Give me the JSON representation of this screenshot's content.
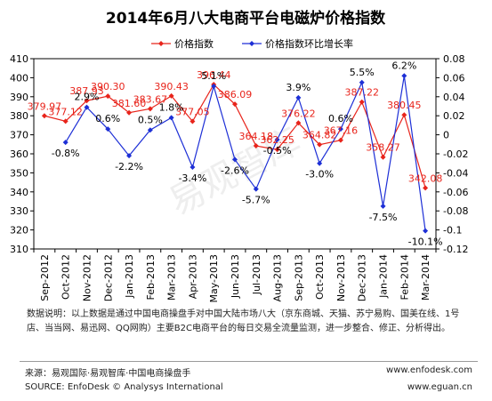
{
  "chart_data": {
    "type": "line",
    "title": "2014年6月八大电商平台电磁炉价格指数",
    "categories": [
      "Sep-2012",
      "Oct-2012",
      "Nov-2012",
      "Dec-2012",
      "Jan-2013",
      "Feb-2013",
      "Mar-2013",
      "Apr-2013",
      "May-2013",
      "Jun-2013",
      "Jul-2013",
      "Aug-2013",
      "Sep-2013",
      "Oct-2013",
      "Nov-2013",
      "Dec-2013",
      "Jan-2014",
      "Feb-2014",
      "Mar-2014"
    ],
    "series": [
      {
        "name": "价格指数",
        "axis": "left",
        "color": "#e8241b",
        "values": [
          379.97,
          377.12,
          387.93,
          390.3,
          381.6,
          383.67,
          390.43,
          377.05,
          396.44,
          386.09,
          364.18,
          362.25,
          376.22,
          364.82,
          367.16,
          387.22,
          358.27,
          380.45,
          342.08
        ],
        "labels": [
          "379.97",
          "377.12",
          "387.93",
          "390.30",
          "381.60",
          "383.67",
          "390.43",
          "377.05",
          "396.44",
          "386.09",
          "364.18",
          "362.25",
          "376.22",
          "364.82",
          "367.16",
          "387.22",
          "358.27",
          "380.45",
          "342.08"
        ]
      },
      {
        "name": "价格指数环比增长率",
        "axis": "right",
        "color": "#1d2fd6",
        "values": [
          null,
          -0.008,
          0.029,
          0.006,
          -0.022,
          0.005,
          0.018,
          -0.034,
          0.051,
          -0.026,
          -0.057,
          -0.005,
          0.039,
          -0.03,
          0.006,
          0.055,
          -0.075,
          0.062,
          -0.101
        ],
        "labels": [
          null,
          "-0.8%",
          "2.9%",
          "0.6%",
          "-2.2%",
          "0.5%",
          "1.8%",
          "-3.4%",
          "5.1%",
          "-2.6%",
          "-5.7%",
          "-0.5%",
          "3.9%",
          "-3.0%",
          "0.6%",
          "5.5%",
          "-7.5%",
          "6.2%",
          "-10.1%"
        ]
      }
    ],
    "ylim": [
      310,
      410
    ],
    "y_ticks": [
      "310",
      "320",
      "330",
      "340",
      "350",
      "360",
      "370",
      "380",
      "390",
      "400",
      "410"
    ],
    "y2lim": [
      -0.12,
      0.08
    ],
    "y2_ticks": [
      "-0.12",
      "-0.1",
      "-0.08",
      "-0.06",
      "-0.04",
      "-0.02",
      "0",
      "0.02",
      "0.04",
      "0.06",
      "0.08"
    ],
    "grid": false,
    "legend": "top-right",
    "watermark": "易观智库"
  },
  "note": "数据说明：以上数据是通过中国电商操盘手对中国大陆市场八大（京东商城、天猫、苏宁易购、国美在线、1号店、当当网、易迅网、QQ网购）主要B2C电商平台的每日交易全流量监测，进一步整合、修正、分析得出。",
  "footer": {
    "source_cn": "来源：易观国际·易观智库·中国电商操盘手",
    "source_en": "SOURCE: EnfoDesk © Analysys International",
    "url1": "www.enfodesk.com",
    "url2": "www.eguan.cn"
  }
}
